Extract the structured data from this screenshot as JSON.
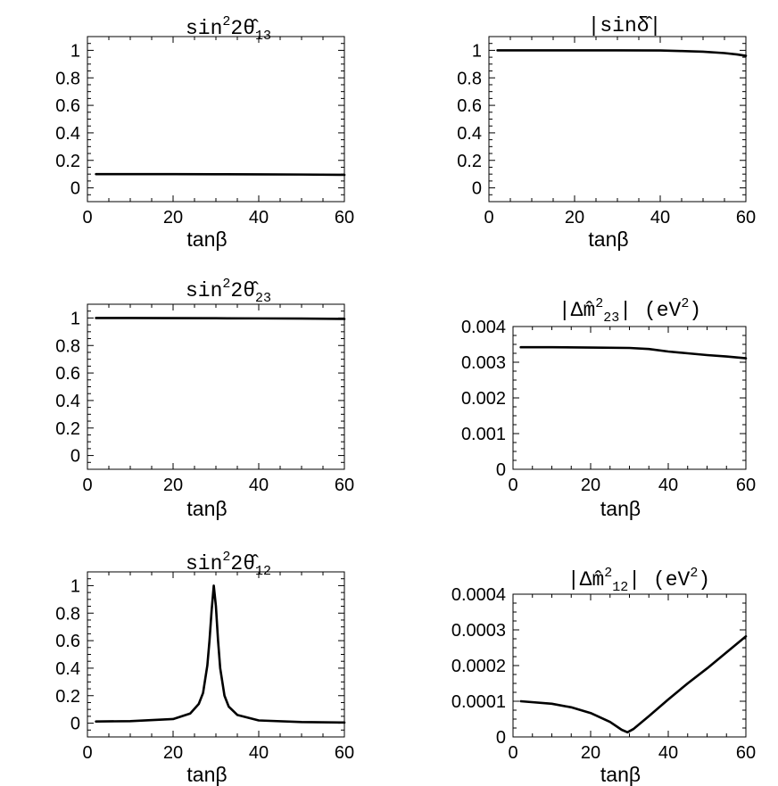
{
  "chart_data": [
    {
      "type": "line",
      "title": {
        "pre": "sin",
        "sup": "2",
        "mid": "2θ̂",
        "sub": "13",
        "post": ""
      },
      "xlabel": "tanβ",
      "xlim": [
        0,
        60
      ],
      "ylim": [
        -0.1,
        1.1
      ],
      "xticks": [
        0,
        20,
        40,
        60
      ],
      "xtick_labels": [
        "0",
        "20",
        "40",
        "60"
      ],
      "yticks": [
        0,
        0.2,
        0.4,
        0.6,
        0.8,
        1
      ],
      "ytick_labels": [
        "0",
        "0.2",
        "0.4",
        "0.6",
        "0.8",
        "1"
      ],
      "x": [
        2,
        10,
        20,
        30,
        40,
        50,
        60
      ],
      "y": [
        0.1,
        0.1,
        0.1,
        0.099,
        0.098,
        0.097,
        0.095
      ]
    },
    {
      "type": "line",
      "title": {
        "pre": "|sin",
        "sup": "",
        "mid": "δ̂",
        "sub": "",
        "post": "|"
      },
      "xlabel": "tanβ",
      "xlim": [
        0,
        60
      ],
      "ylim": [
        -0.1,
        1.1
      ],
      "xticks": [
        0,
        20,
        40,
        60
      ],
      "xtick_labels": [
        "0",
        "20",
        "40",
        "60"
      ],
      "yticks": [
        0,
        0.2,
        0.4,
        0.6,
        0.8,
        1
      ],
      "ytick_labels": [
        "0",
        "0.2",
        "0.4",
        "0.6",
        "0.8",
        "1"
      ],
      "x": [
        2,
        10,
        20,
        30,
        40,
        45,
        50,
        55,
        58,
        60
      ],
      "y": [
        1.0,
        1.0,
        1.0,
        1.0,
        0.999,
        0.995,
        0.99,
        0.98,
        0.97,
        0.96
      ]
    },
    {
      "type": "line",
      "title": {
        "pre": "sin",
        "sup": "2",
        "mid": "2θ̂",
        "sub": "23",
        "post": ""
      },
      "xlabel": "tanβ",
      "xlim": [
        0,
        60
      ],
      "ylim": [
        -0.1,
        1.1
      ],
      "xticks": [
        0,
        20,
        40,
        60
      ],
      "xtick_labels": [
        "0",
        "20",
        "40",
        "60"
      ],
      "yticks": [
        0,
        0.2,
        0.4,
        0.6,
        0.8,
        1
      ],
      "ytick_labels": [
        "0",
        "0.2",
        "0.4",
        "0.6",
        "0.8",
        "1"
      ],
      "x": [
        2,
        10,
        20,
        30,
        40,
        50,
        60
      ],
      "y": [
        1.0,
        1.0,
        0.999,
        0.998,
        0.997,
        0.996,
        0.993
      ]
    },
    {
      "type": "line",
      "title": {
        "pre": "|Δm̂",
        "sup": "2",
        "mid": "",
        "sub": "23",
        "post": "|  (eV",
        "post_sup": "2",
        "post_end": ")"
      },
      "xlabel": "tanβ",
      "xlim": [
        0,
        60
      ],
      "ylim": [
        0,
        0.004
      ],
      "xticks": [
        0,
        20,
        40,
        60
      ],
      "xtick_labels": [
        "0",
        "20",
        "40",
        "60"
      ],
      "yticks": [
        0,
        0.001,
        0.002,
        0.003,
        0.004
      ],
      "ytick_labels": [
        "0",
        "0.001",
        "0.002",
        "0.003",
        "0.004"
      ],
      "x": [
        2,
        10,
        20,
        30,
        35,
        40,
        45,
        50,
        55,
        60
      ],
      "y": [
        0.00342,
        0.00342,
        0.00341,
        0.0034,
        0.00337,
        0.0033,
        0.00325,
        0.0032,
        0.00316,
        0.00311
      ]
    },
    {
      "type": "line",
      "title": {
        "pre": "sin",
        "sup": "2",
        "mid": "2θ̂",
        "sub": "12",
        "post": ""
      },
      "xlabel": "tanβ",
      "xlim": [
        0,
        60
      ],
      "ylim": [
        -0.1,
        1.1
      ],
      "xticks": [
        0,
        20,
        40,
        60
      ],
      "xtick_labels": [
        "0",
        "20",
        "40",
        "60"
      ],
      "yticks": [
        0,
        0.2,
        0.4,
        0.6,
        0.8,
        1
      ],
      "ytick_labels": [
        "0",
        "0.2",
        "0.4",
        "0.6",
        "0.8",
        "1"
      ],
      "x": [
        2,
        10,
        20,
        24,
        26,
        27,
        28,
        28.5,
        29,
        29.5,
        30,
        30.5,
        31,
        32,
        33,
        35,
        40,
        50,
        60
      ],
      "y": [
        0.012,
        0.015,
        0.03,
        0.07,
        0.14,
        0.22,
        0.42,
        0.6,
        0.82,
        1.0,
        0.85,
        0.6,
        0.4,
        0.2,
        0.12,
        0.06,
        0.02,
        0.008,
        0.005
      ]
    },
    {
      "type": "line",
      "title": {
        "pre": "|Δm̂",
        "sup": "2",
        "mid": "",
        "sub": "12",
        "post": "|  (eV",
        "post_sup": "2",
        "post_end": ")"
      },
      "xlabel": "tanβ",
      "xlim": [
        0,
        60
      ],
      "ylim": [
        0,
        0.0004
      ],
      "xticks": [
        0,
        20,
        40,
        60
      ],
      "xtick_labels": [
        "0",
        "20",
        "40",
        "60"
      ],
      "yticks": [
        0,
        0.0001,
        0.0002,
        0.0003,
        0.0004
      ],
      "ytick_labels": [
        "0",
        "0.0001",
        "0.0002",
        "0.0003",
        "0.0004"
      ],
      "x": [
        2,
        10,
        15,
        20,
        25,
        28,
        29.5,
        31,
        35,
        40,
        45,
        50,
        55,
        60
      ],
      "y": [
        0.0001,
        9.3e-05,
        8.3e-05,
        6.7e-05,
        4.2e-05,
        2e-05,
        1.3e-05,
        2.2e-05,
        5.8e-05,
        0.000105,
        0.00015,
        0.000192,
        0.000237,
        0.000282
      ]
    }
  ]
}
